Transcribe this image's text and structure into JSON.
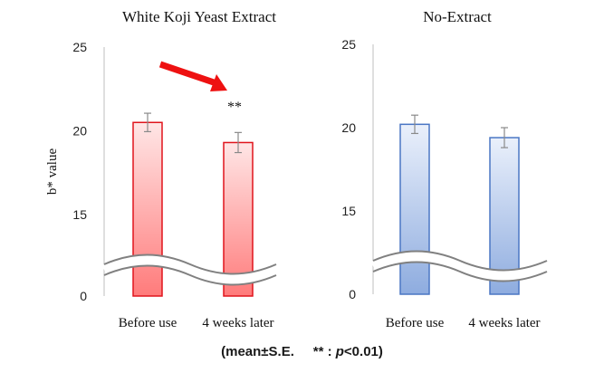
{
  "chart_data": [
    {
      "type": "bar",
      "title": "White  Koji  Yeast Extract",
      "ylabel": "b* value",
      "categories": [
        "Before use",
        "4 weeks later"
      ],
      "values": [
        20.5,
        19.3
      ],
      "errors": [
        0.55,
        0.6
      ],
      "ylim": [
        0,
        25
      ],
      "yticks": [
        "0",
        "15",
        "20",
        "25"
      ],
      "axis_break": true,
      "significance": {
        "label": "**",
        "category_index": 1
      },
      "trend_arrow": "decrease",
      "colors": {
        "fill_top": "#ffe6e6",
        "fill_bottom": "#ff7b7b",
        "stroke": "#e0141c",
        "arrow": "#ee1111"
      }
    },
    {
      "type": "bar",
      "title": "No-Extract",
      "categories": [
        "Before use",
        "4 weeks later"
      ],
      "values": [
        20.2,
        19.4
      ],
      "errors": [
        0.55,
        0.6
      ],
      "ylim": [
        0,
        25
      ],
      "yticks": [
        "0",
        "15",
        "20",
        "25"
      ],
      "axis_break": true,
      "colors": {
        "fill_top": "#eaf0fb",
        "fill_bottom": "#8eacdf",
        "stroke": "#4a76c4"
      }
    }
  ],
  "footnote": {
    "open": "(mean±S.E.",
    "sig_mark": "** :",
    "p_symbol": "p",
    "threshold": "<0.01)"
  }
}
